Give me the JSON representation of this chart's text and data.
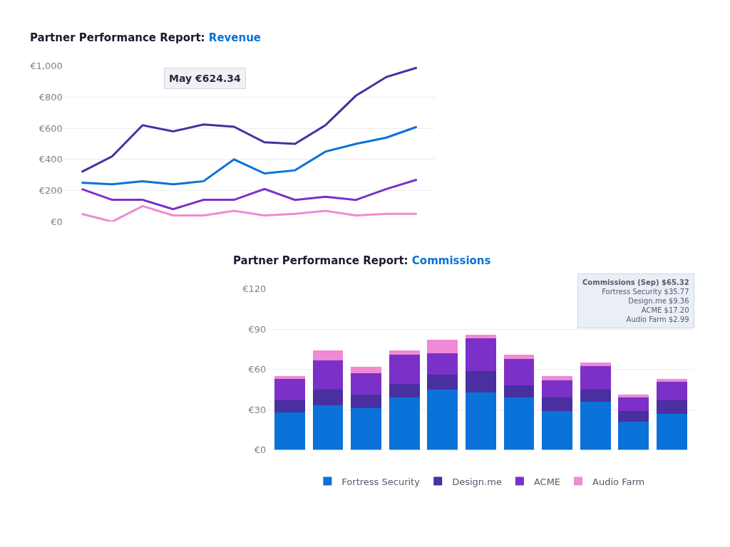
{
  "chart_data": [
    {
      "type": "line",
      "title": "Partner Performance Report: Revenue",
      "categories": [
        null,
        null,
        null,
        null,
        null,
        null,
        null,
        null,
        null,
        null,
        null,
        null
      ],
      "series": [
        {
          "color": "#4a2fa0",
          "values": [
            320,
            420,
            620,
            580,
            624.34,
            610,
            510,
            500,
            620,
            810,
            930,
            990
          ]
        },
        {
          "color": "#0a72d8",
          "values": [
            250,
            240,
            260,
            240,
            260,
            400,
            310,
            330,
            450,
            500,
            540,
            610
          ]
        },
        {
          "color": "#7b30c8",
          "values": [
            210,
            140,
            140,
            80,
            140,
            140,
            210,
            140,
            160,
            140,
            210,
            270
          ]
        },
        {
          "color": "#f08ad4",
          "values": [
            50,
            0,
            100,
            40,
            40,
            70,
            40,
            50,
            70,
            40,
            50,
            50
          ]
        }
      ],
      "ylim": [
        0,
        1000
      ],
      "yticks": [
        {
          "value": 0,
          "label": "€0"
        },
        {
          "value": 200,
          "label": "€200"
        },
        {
          "value": 400,
          "label": "€400"
        },
        {
          "value": 600,
          "label": "€600"
        },
        {
          "value": 800,
          "label": "€800"
        },
        {
          "value": 1000,
          "label": "€1,000"
        }
      ],
      "grid": "y",
      "legend": false,
      "annotations": [
        "May €624.34"
      ]
    },
    {
      "type": "bar",
      "title": "Partner Performance Report: Commissions",
      "stacked": true,
      "categories": [
        null,
        null,
        null,
        null,
        null,
        null,
        null,
        null,
        null,
        null,
        null
      ],
      "series": [
        {
          "name": "Fortress Security",
          "color": "#0a72d8",
          "values": [
            28,
            33,
            31,
            39,
            45,
            43,
            39,
            29,
            35.77,
            21,
            27
          ]
        },
        {
          "name": "Design.me",
          "color": "#4a2fa0",
          "values": [
            9,
            12,
            10,
            10,
            11,
            16,
            9,
            10,
            9.36,
            8,
            10
          ]
        },
        {
          "name": "ACME",
          "color": "#7b30c8",
          "values": [
            16,
            22,
            16,
            22,
            16,
            24,
            20,
            13,
            17.2,
            10,
            14
          ]
        },
        {
          "name": "Audio Farm",
          "color": "#f08ad4",
          "values": [
            2,
            7,
            5,
            3,
            10,
            3,
            3,
            3,
            2.99,
            2,
            2
          ]
        }
      ],
      "ylim": [
        0,
        120
      ],
      "yticks": [
        {
          "value": 0,
          "label": "€0"
        },
        {
          "value": 30,
          "label": "€30"
        },
        {
          "value": 60,
          "label": "€60"
        },
        {
          "value": 90,
          "label": "€90"
        },
        {
          "value": 120,
          "label": "€120"
        }
      ],
      "grid": "y",
      "legend": "bottom",
      "annotations": [
        "Commissions (Sep) $65.32",
        "Fortress Security $35.77",
        "Design.me $9.36",
        "ACME $17.20",
        "Audio Farm $2.99"
      ]
    }
  ]
}
